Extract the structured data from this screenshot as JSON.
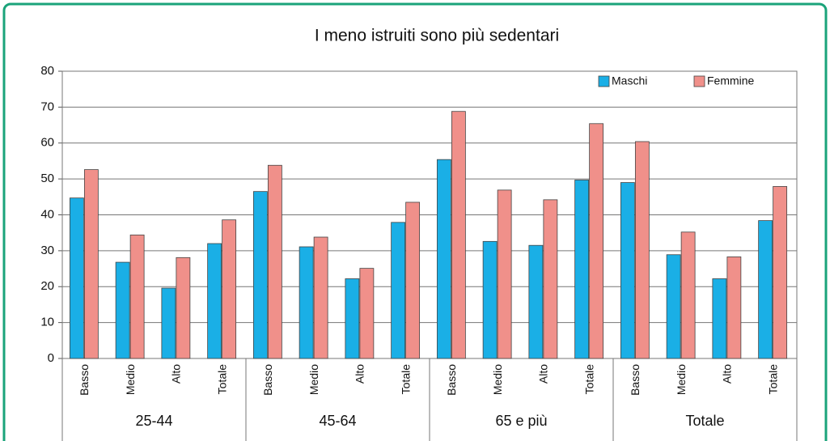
{
  "chart_data": {
    "type": "bar",
    "title": "I meno istruiti sono più sedentari",
    "categories": [
      "Basso",
      "Medio",
      "Alto",
      "Totale",
      "Basso",
      "Medio",
      "Alto",
      "Totale",
      "Basso",
      "Medio",
      "Alto",
      "Totale",
      "Basso",
      "Medio",
      "Alto",
      "Totale"
    ],
    "groups": [
      "25-44",
      "45-64",
      "65 e più",
      "Totale"
    ],
    "series": [
      {
        "name": "Maschi",
        "color": "#1aafe6",
        "values": [
          44.7,
          26.8,
          19.6,
          32.0,
          46.5,
          31.1,
          22.2,
          37.9,
          55.4,
          32.6,
          31.5,
          49.7,
          49.0,
          28.9,
          22.2,
          38.4
        ]
      },
      {
        "name": "Femmine",
        "color": "#f0908a",
        "values": [
          52.6,
          34.4,
          28.1,
          38.6,
          53.8,
          33.8,
          25.1,
          43.5,
          68.8,
          46.9,
          44.2,
          65.4,
          60.4,
          35.2,
          28.3,
          47.9
        ]
      }
    ],
    "ylim": [
      0,
      80
    ],
    "yticks": [
      0,
      10,
      20,
      30,
      40,
      50,
      60,
      70,
      80
    ],
    "grid": true,
    "legend": "top-right"
  }
}
